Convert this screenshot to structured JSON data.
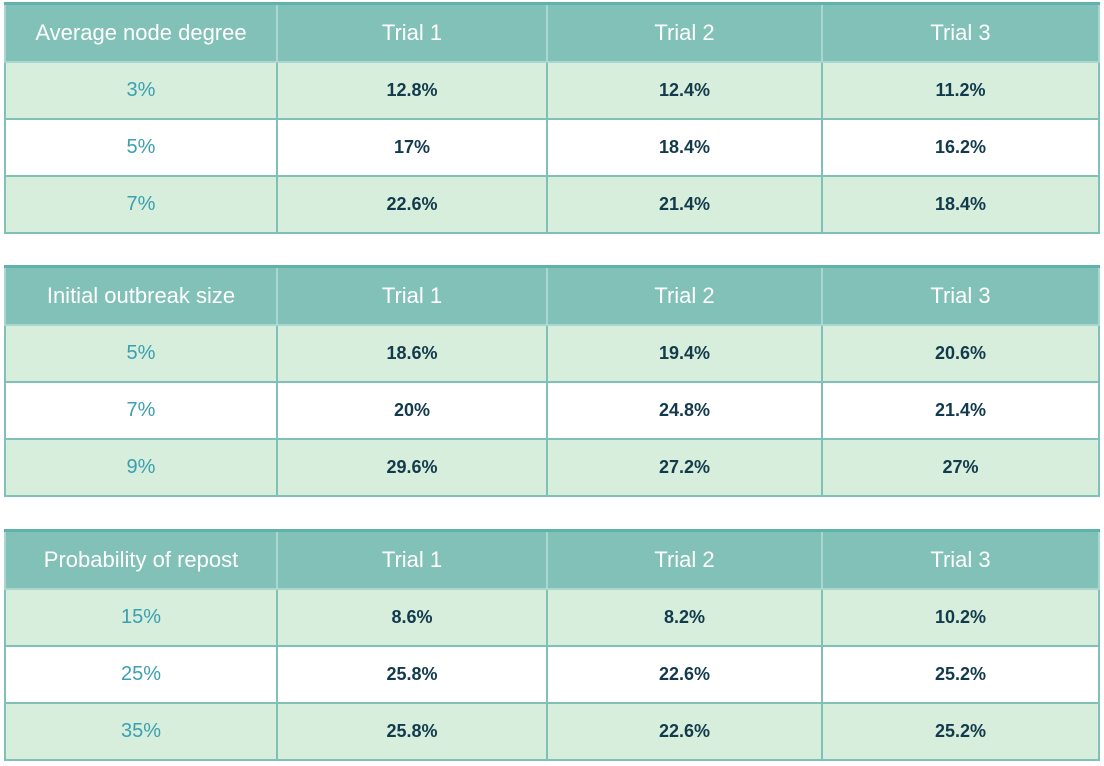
{
  "tables": [
    {
      "header": [
        "Average node  degree",
        "Trial 1",
        "Trial 2",
        "Trial 3"
      ],
      "rows": [
        {
          "label": "3%",
          "values": [
            "12.8%",
            "12.4%",
            "11.2%"
          ]
        },
        {
          "label": "5%",
          "values": [
            "17%",
            "18.4%",
            "16.2%"
          ]
        },
        {
          "label": "7%",
          "values": [
            "22.6%",
            "21.4%",
            "18.4%"
          ]
        }
      ]
    },
    {
      "header": [
        "Initial outbreak size",
        "Trial 1",
        "Trial 2",
        "Trial 3"
      ],
      "rows": [
        {
          "label": "5%",
          "values": [
            "18.6%",
            "19.4%",
            "20.6%"
          ]
        },
        {
          "label": "7%",
          "values": [
            "20%",
            "24.8%",
            "21.4%"
          ]
        },
        {
          "label": "9%",
          "values": [
            "29.6%",
            "27.2%",
            "27%"
          ]
        }
      ]
    },
    {
      "header": [
        "Probability of repost",
        "Trial 1",
        "Trial 2",
        "Trial 3"
      ],
      "rows": [
        {
          "label": "15%",
          "values": [
            "8.6%",
            "8.2%",
            "10.2%"
          ]
        },
        {
          "label": "25%",
          "values": [
            "25.8%",
            "22.6%",
            "25.2%"
          ]
        },
        {
          "label": "35%",
          "values": [
            "25.8%",
            "22.6%",
            "25.2%"
          ]
        }
      ]
    }
  ],
  "colors": {
    "header_bg": "#82c1b8",
    "shade_row_bg": "#d6eedb",
    "label_text": "#3a9fb0",
    "value_text": "#123a4c"
  }
}
